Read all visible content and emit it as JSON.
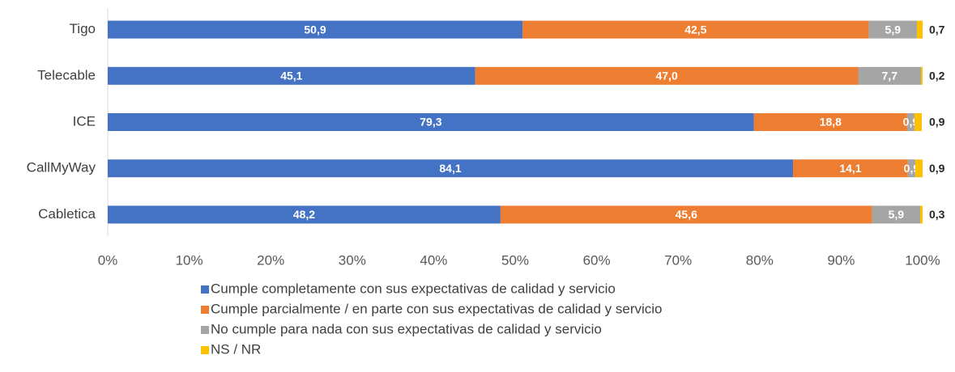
{
  "chart_data": {
    "type": "stacked-barh",
    "categories": [
      "Tigo",
      "Telecable",
      "ICE",
      "CallMyWay",
      "Cabletica"
    ],
    "series": [
      {
        "name": "Cumple completamente con sus expectativas de calidad y servicio",
        "color": "#4472c4",
        "values": [
          50.9,
          45.1,
          79.3,
          84.1,
          48.2
        ],
        "value_labels": [
          "50,9",
          "45,1",
          "79,3",
          "84,1",
          "48,2"
        ]
      },
      {
        "name": "Cumple parcialmente / en parte con sus expectativas de calidad y servicio",
        "color": "#ed7d31",
        "values": [
          42.5,
          47.0,
          18.8,
          14.1,
          45.6
        ],
        "value_labels": [
          "42,5",
          "47,0",
          "18,8",
          "14,1",
          "45,6"
        ]
      },
      {
        "name": "No cumple para nada con sus expectativas de calidad y servicio",
        "color": "#a5a5a5",
        "values": [
          5.9,
          7.7,
          0.9,
          0.9,
          5.9
        ],
        "value_labels": [
          "5,9",
          "7,7",
          "0,9",
          "0,9",
          "5,9"
        ]
      },
      {
        "name": "NS / NR",
        "color": "#ffc000",
        "values": [
          0.7,
          0.2,
          0.9,
          0.9,
          0.3
        ],
        "value_labels": [
          "0,7",
          "0,2",
          "0,9",
          "0,9",
          "0,3"
        ]
      }
    ],
    "xlim": [
      0,
      100
    ],
    "xticks": [
      {
        "value": 0,
        "label": "0%"
      },
      {
        "value": 10,
        "label": "10%"
      },
      {
        "value": 20,
        "label": "20%"
      },
      {
        "value": 30,
        "label": "30%"
      },
      {
        "value": 40,
        "label": "40%"
      },
      {
        "value": 50,
        "label": "50%"
      },
      {
        "value": 60,
        "label": "60%"
      },
      {
        "value": 70,
        "label": "70%"
      },
      {
        "value": 80,
        "label": "80%"
      },
      {
        "value": 90,
        "label": "90%"
      },
      {
        "value": 100,
        "label": "100%"
      }
    ],
    "legend": "bottom"
  }
}
